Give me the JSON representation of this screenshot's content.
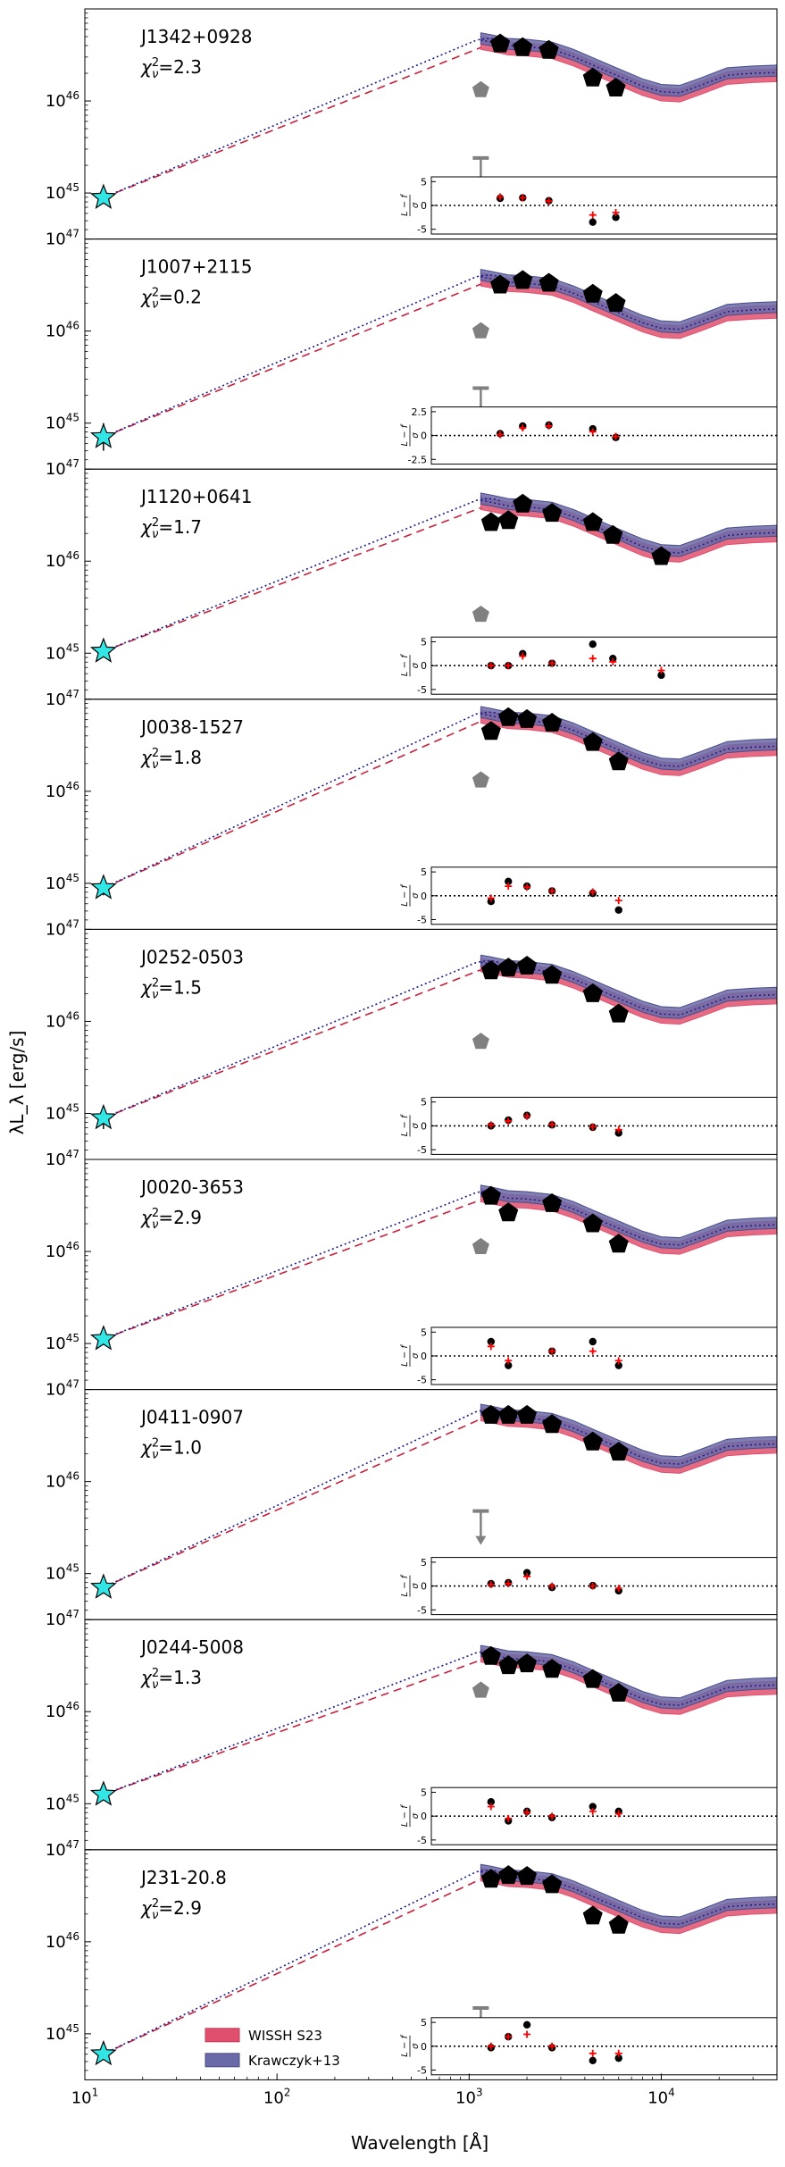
{
  "figure": {
    "ylabel": "λL_λ [erg/s]",
    "xlabel": "Wavelength [Å]",
    "x_ticks": [
      "10^1",
      "10^2",
      "10^3",
      "10^4"
    ],
    "y_ticks": [
      "10^45",
      "10^46",
      "10^47"
    ],
    "residual_ylabel": "(L−f)/σ",
    "legend": {
      "placement": "bottom-left of last panel",
      "entries": [
        {
          "label": "WISSH S23",
          "color": "#e0506e"
        },
        {
          "label": "Krawczyk+13",
          "color": "#6a6aa8"
        }
      ]
    },
    "colors": {
      "wissh": "#e0506e",
      "krawczyk": "#6a6aa8",
      "photometry": "#000000",
      "radio_star": "#33e6e6",
      "uv_point": "#808080",
      "dashed_model": "#c8203c",
      "dotted_model": "#1c1c8c",
      "residual_model": "#ff0000"
    }
  },
  "chart_data": [
    {
      "name": "J1342+0928",
      "chi2": "2.3",
      "type": "scatter",
      "xlim": [
        10,
        40000
      ],
      "ylim_log": [
        44.5,
        47.0
      ],
      "radio": {
        "x": 12.5,
        "logy": 44.95,
        "err": 0.05
      },
      "photometry": [
        {
          "x": 1450,
          "logy": 46.62
        },
        {
          "x": 1900,
          "logy": 46.58
        },
        {
          "x": 2600,
          "logy": 46.55
        },
        {
          "x": 4400,
          "logy": 46.25
        },
        {
          "x": 5800,
          "logy": 46.14
        }
      ],
      "uv_point": {
        "x": 1150,
        "logy": 46.12
      },
      "upper_limit": {
        "x": 1150,
        "logy": 45.38
      },
      "residuals": [
        {
          "x": 1450,
          "r": 1.5,
          "m": 1.8
        },
        {
          "x": 1900,
          "r": 1.6,
          "m": 1.6
        },
        {
          "x": 2600,
          "r": 1.0,
          "m": 0.9
        },
        {
          "x": 4400,
          "r": -3.5,
          "m": -2.0
        },
        {
          "x": 5800,
          "r": -2.5,
          "m": -1.5
        }
      ],
      "residual_ylim": [
        -6,
        6
      ],
      "residual_ticks": [
        -5,
        0,
        5
      ]
    },
    {
      "name": "J1007+2115",
      "chi2": "0.2",
      "type": "scatter",
      "xlim": [
        10,
        40000
      ],
      "ylim_log": [
        44.5,
        47.0
      ],
      "radio": {
        "x": 12.5,
        "logy": 44.85,
        "err": 0.15
      },
      "photometry": [
        {
          "x": 1450,
          "logy": 46.5
        },
        {
          "x": 1900,
          "logy": 46.55
        },
        {
          "x": 2600,
          "logy": 46.52
        },
        {
          "x": 4400,
          "logy": 46.4
        },
        {
          "x": 5800,
          "logy": 46.3
        }
      ],
      "uv_point": {
        "x": 1150,
        "logy": 46.0
      },
      "upper_limit": {
        "x": 1150,
        "logy": 45.38
      },
      "residuals": [
        {
          "x": 1450,
          "r": 0.2,
          "m": 0.1
        },
        {
          "x": 1900,
          "r": 1.0,
          "m": 0.8
        },
        {
          "x": 2600,
          "r": 1.1,
          "m": 1.0
        },
        {
          "x": 4400,
          "r": 0.7,
          "m": 0.4
        },
        {
          "x": 5800,
          "r": -0.2,
          "m": -0.1
        }
      ],
      "residual_ylim": [
        -3,
        3
      ],
      "residual_ticks": [
        -2.5,
        0.0,
        2.5
      ]
    },
    {
      "name": "J1120+0641",
      "chi2": "1.7",
      "type": "scatter",
      "xlim": [
        10,
        40000
      ],
      "ylim_log": [
        44.5,
        47.0
      ],
      "radio": {
        "x": 12.5,
        "logy": 45.02,
        "err": 0.05
      },
      "photometry": [
        {
          "x": 1300,
          "logy": 46.42
        },
        {
          "x": 1600,
          "logy": 46.44
        },
        {
          "x": 1900,
          "logy": 46.62
        },
        {
          "x": 2700,
          "logy": 46.52
        },
        {
          "x": 4400,
          "logy": 46.42
        },
        {
          "x": 5600,
          "logy": 46.28
        },
        {
          "x": 10000,
          "logy": 46.05
        }
      ],
      "uv_point": {
        "x": 1150,
        "logy": 45.42
      },
      "residuals": [
        {
          "x": 1300,
          "r": 0.0,
          "m": 0.0
        },
        {
          "x": 1600,
          "r": 0.0,
          "m": 0.0
        },
        {
          "x": 1900,
          "r": 2.5,
          "m": 2.0
        },
        {
          "x": 2700,
          "r": 0.5,
          "m": 0.5
        },
        {
          "x": 4400,
          "r": 4.5,
          "m": 1.5
        },
        {
          "x": 5600,
          "r": 1.5,
          "m": 0.8
        },
        {
          "x": 10000,
          "r": -2.0,
          "m": -1.0
        }
      ],
      "residual_ylim": [
        -6,
        6
      ],
      "residual_ticks": [
        -5,
        0,
        5
      ]
    },
    {
      "name": "J0038-1527",
      "chi2": "1.8",
      "type": "scatter",
      "xlim": [
        10,
        40000
      ],
      "ylim_log": [
        44.5,
        47.0
      ],
      "radio": {
        "x": 12.5,
        "logy": 44.95,
        "err": 0.08
      },
      "photometry": [
        {
          "x": 1300,
          "logy": 46.65
        },
        {
          "x": 1600,
          "logy": 46.8
        },
        {
          "x": 2000,
          "logy": 46.78
        },
        {
          "x": 2700,
          "logy": 46.74
        },
        {
          "x": 4400,
          "logy": 46.53
        },
        {
          "x": 6000,
          "logy": 46.32
        }
      ],
      "uv_point": {
        "x": 1150,
        "logy": 46.12
      },
      "residuals": [
        {
          "x": 1300,
          "r": -1.2,
          "m": -0.5
        },
        {
          "x": 1600,
          "r": 3.0,
          "m": 2.0
        },
        {
          "x": 2000,
          "r": 2.0,
          "m": 1.8
        },
        {
          "x": 2700,
          "r": 1.0,
          "m": 1.0
        },
        {
          "x": 4400,
          "r": 0.5,
          "m": 0.8
        },
        {
          "x": 6000,
          "r": -3.0,
          "m": -1.0
        }
      ],
      "residual_ylim": [
        -6,
        6
      ],
      "residual_ticks": [
        -5,
        0,
        5
      ]
    },
    {
      "name": "J0252-0503",
      "chi2": "1.5",
      "type": "scatter",
      "xlim": [
        10,
        40000
      ],
      "ylim_log": [
        44.5,
        47.0
      ],
      "radio": {
        "x": 12.5,
        "logy": 44.95,
        "err": 0.12
      },
      "photometry": [
        {
          "x": 1300,
          "logy": 46.55
        },
        {
          "x": 1600,
          "logy": 46.58
        },
        {
          "x": 2000,
          "logy": 46.6
        },
        {
          "x": 2700,
          "logy": 46.5
        },
        {
          "x": 4400,
          "logy": 46.3
        },
        {
          "x": 6000,
          "logy": 46.08
        }
      ],
      "uv_point": {
        "x": 1150,
        "logy": 45.78
      },
      "residuals": [
        {
          "x": 1300,
          "r": 0.0,
          "m": 0.2
        },
        {
          "x": 1600,
          "r": 1.2,
          "m": 1.0
        },
        {
          "x": 2000,
          "r": 2.2,
          "m": 2.0
        },
        {
          "x": 2700,
          "r": 0.2,
          "m": 0.3
        },
        {
          "x": 4400,
          "r": -0.3,
          "m": -0.2
        },
        {
          "x": 6000,
          "r": -1.5,
          "m": -0.8
        }
      ],
      "residual_ylim": [
        -6,
        6
      ],
      "residual_ticks": [
        -5,
        0,
        5
      ]
    },
    {
      "name": "J0020-3653",
      "chi2": "2.9",
      "type": "scatter",
      "xlim": [
        10,
        40000
      ],
      "ylim_log": [
        44.5,
        47.0
      ],
      "radio": {
        "x": 12.5,
        "logy": 45.05,
        "err": 0.05
      },
      "photometry": [
        {
          "x": 1300,
          "logy": 46.6
        },
        {
          "x": 1600,
          "logy": 46.42
        },
        {
          "x": 2700,
          "logy": 46.52
        },
        {
          "x": 4400,
          "logy": 46.3
        },
        {
          "x": 6000,
          "logy": 46.08
        }
      ],
      "uv_point": {
        "x": 1150,
        "logy": 46.05
      },
      "residuals": [
        {
          "x": 1300,
          "r": 3.0,
          "m": 2.0
        },
        {
          "x": 1600,
          "r": -2.0,
          "m": -1.0
        },
        {
          "x": 2700,
          "r": 1.0,
          "m": 1.0
        },
        {
          "x": 4400,
          "r": 3.0,
          "m": 1.0
        },
        {
          "x": 6000,
          "r": -2.0,
          "m": -1.0
        }
      ],
      "residual_ylim": [
        -6,
        6
      ],
      "residual_ticks": [
        -5,
        0,
        5
      ]
    },
    {
      "name": "J0411-0907",
      "chi2": "1.0",
      "type": "scatter",
      "xlim": [
        10,
        40000
      ],
      "ylim_log": [
        44.5,
        47.0
      ],
      "radio": {
        "x": 12.5,
        "logy": 44.85,
        "err": 0.05
      },
      "photometry": [
        {
          "x": 1300,
          "logy": 46.72
        },
        {
          "x": 1600,
          "logy": 46.72
        },
        {
          "x": 2000,
          "logy": 46.72
        },
        {
          "x": 2700,
          "logy": 46.62
        },
        {
          "x": 4400,
          "logy": 46.43
        },
        {
          "x": 6000,
          "logy": 46.32
        }
      ],
      "upper_limit": {
        "x": 1150,
        "logy": 45.68
      },
      "residuals": [
        {
          "x": 1300,
          "r": 0.5,
          "m": 0.3
        },
        {
          "x": 1600,
          "r": 0.7,
          "m": 0.5
        },
        {
          "x": 2000,
          "r": 2.8,
          "m": 2.0
        },
        {
          "x": 2700,
          "r": -0.3,
          "m": 0.0
        },
        {
          "x": 4400,
          "r": 0.1,
          "m": 0.0
        },
        {
          "x": 6000,
          "r": -1.0,
          "m": -0.5
        }
      ],
      "residual_ylim": [
        -6,
        6
      ],
      "residual_ticks": [
        -5,
        0,
        5
      ]
    },
    {
      "name": "J0244-5008",
      "chi2": "1.3",
      "type": "scatter",
      "xlim": [
        10,
        40000
      ],
      "ylim_log": [
        44.5,
        47.0
      ],
      "radio": {
        "x": 12.5,
        "logy": 45.1,
        "err": 0.05
      },
      "photometry": [
        {
          "x": 1300,
          "logy": 46.6
        },
        {
          "x": 1600,
          "logy": 46.5
        },
        {
          "x": 2000,
          "logy": 46.52
        },
        {
          "x": 2700,
          "logy": 46.46
        },
        {
          "x": 4400,
          "logy": 46.35
        },
        {
          "x": 6000,
          "logy": 46.2
        }
      ],
      "uv_point": {
        "x": 1150,
        "logy": 46.23
      },
      "residuals": [
        {
          "x": 1300,
          "r": 3.0,
          "m": 2.0
        },
        {
          "x": 1600,
          "r": -1.0,
          "m": -0.5
        },
        {
          "x": 2000,
          "r": 1.0,
          "m": 0.8
        },
        {
          "x": 2700,
          "r": -0.3,
          "m": 0.0
        },
        {
          "x": 4400,
          "r": 2.0,
          "m": 1.0
        },
        {
          "x": 6000,
          "r": 1.0,
          "m": 0.5
        }
      ],
      "residual_ylim": [
        -6,
        6
      ],
      "residual_ticks": [
        -5,
        0,
        5
      ]
    },
    {
      "name": "J231-20.8",
      "chi2": "2.9",
      "type": "scatter",
      "xlim": [
        10,
        40000
      ],
      "ylim_log": [
        44.5,
        47.0
      ],
      "radio": {
        "x": 12.5,
        "logy": 44.78,
        "err": 0.05
      },
      "photometry": [
        {
          "x": 1300,
          "logy": 46.68
        },
        {
          "x": 1600,
          "logy": 46.72
        },
        {
          "x": 2000,
          "logy": 46.71
        },
        {
          "x": 2700,
          "logy": 46.62
        },
        {
          "x": 4400,
          "logy": 46.28
        },
        {
          "x": 6000,
          "logy": 46.18
        }
      ],
      "upper_limit": {
        "x": 1150,
        "logy": 45.28
      },
      "residuals": [
        {
          "x": 1300,
          "r": -0.3,
          "m": 0.0
        },
        {
          "x": 1600,
          "r": 2.0,
          "m": 2.0
        },
        {
          "x": 2000,
          "r": 4.5,
          "m": 2.5
        },
        {
          "x": 2700,
          "r": -0.3,
          "m": 0.0
        },
        {
          "x": 4400,
          "r": -3.0,
          "m": -1.5
        },
        {
          "x": 6000,
          "r": -2.5,
          "m": -1.5
        }
      ],
      "residual_ylim": [
        -6,
        6
      ],
      "residual_ticks": [
        -5,
        0,
        5
      ]
    }
  ]
}
